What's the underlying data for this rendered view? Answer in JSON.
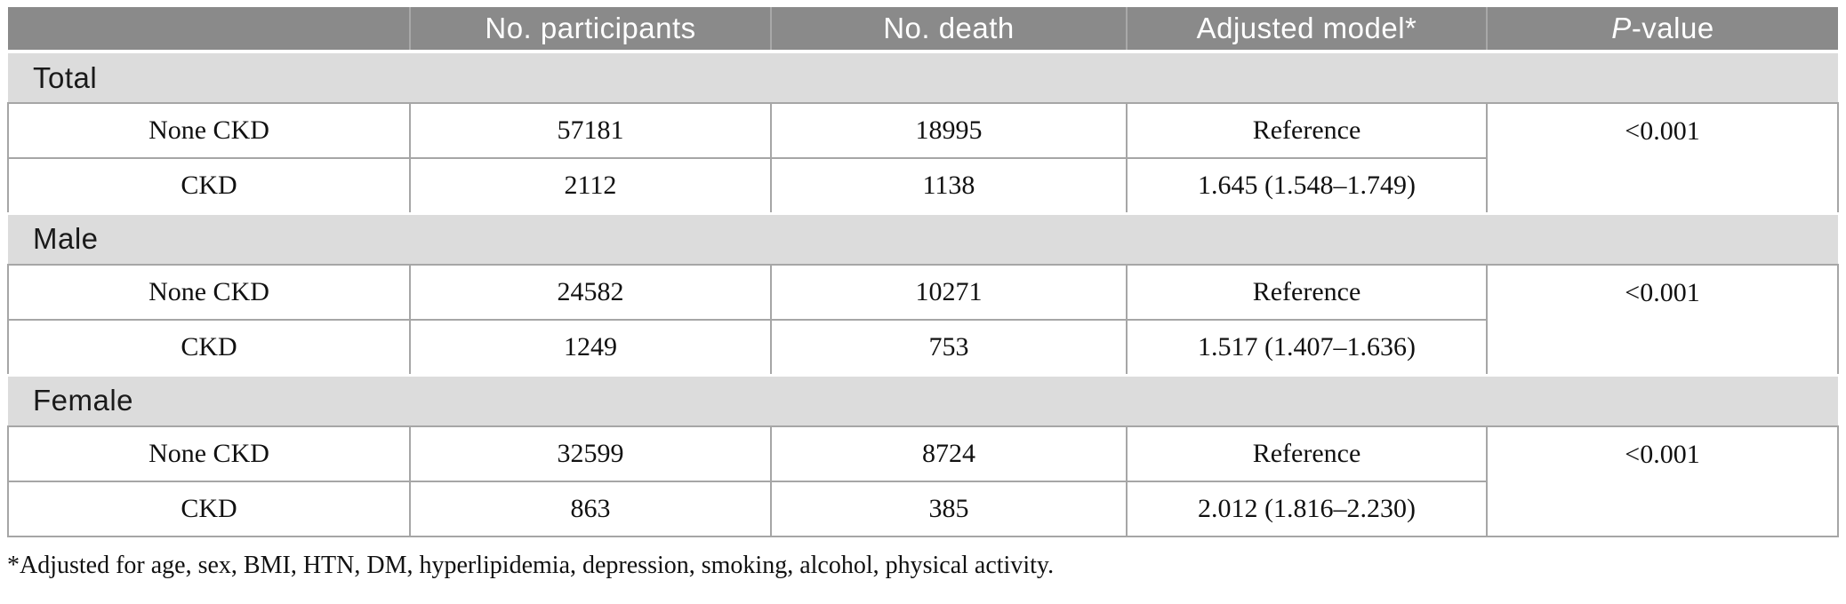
{
  "colors": {
    "header_bg": "#8a8a8a",
    "header_text": "#ffffff",
    "section_bg": "#dcdcdc",
    "cell_border": "#a6a6a6",
    "text": "#111111"
  },
  "table": {
    "column_headers": {
      "group": "",
      "participants": "No. participants",
      "deaths": "No. death",
      "adjusted_model": "Adjusted model*",
      "p_value_italic": "P",
      "p_value_rest": "-value"
    },
    "sections": [
      {
        "label": "Total",
        "p_value": "<0.001",
        "rows": [
          {
            "group": "None CKD",
            "participants": "57181",
            "deaths": "18995",
            "model": "Reference"
          },
          {
            "group": "CKD",
            "participants": "2112",
            "deaths": "1138",
            "model": "1.645 (1.548–1.749)"
          }
        ]
      },
      {
        "label": "Male",
        "p_value": "<0.001",
        "rows": [
          {
            "group": "None CKD",
            "participants": "24582",
            "deaths": "10271",
            "model": "Reference"
          },
          {
            "group": "CKD",
            "participants": "1249",
            "deaths": "753",
            "model": "1.517 (1.407–1.636)"
          }
        ]
      },
      {
        "label": "Female",
        "p_value": "<0.001",
        "rows": [
          {
            "group": "None CKD",
            "participants": "32599",
            "deaths": "8724",
            "model": "Reference"
          },
          {
            "group": "CKD",
            "participants": "863",
            "deaths": "385",
            "model": "2.012 (1.816–2.230)"
          }
        ]
      }
    ],
    "footnote": "*Adjusted for age, sex, BMI, HTN, DM, hyperlipidemia, depression, smoking, alcohol, physical activity."
  }
}
